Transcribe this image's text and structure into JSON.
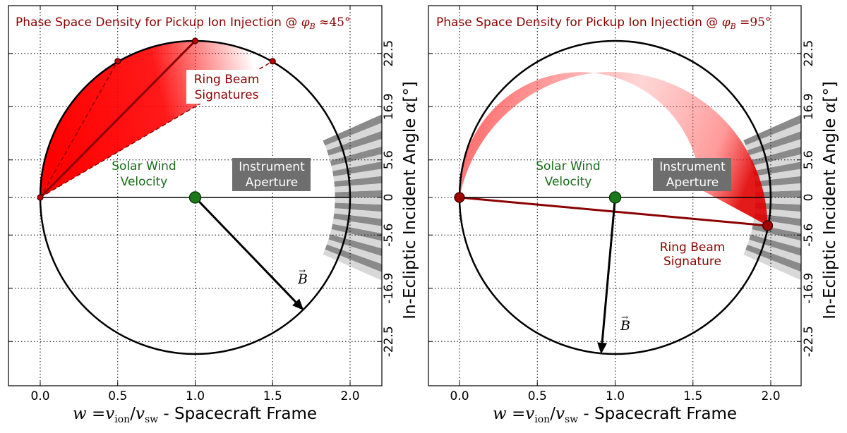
{
  "chart_data": [
    {
      "type": "scatter",
      "title": "Phase Space Density for Pickup Ion Injection @ φB ≈45°",
      "title_text": "Phase Space Density for Pickup Ion Injection @ ",
      "title_math": "φB ≈45°",
      "xlabel": "w = v_ion / v_sw - Spacecraft Frame",
      "xlabel_math": "w =v",
      "xlabel_sub1": "ion",
      "xlabel_mid": "/v",
      "xlabel_sub2": "sw",
      "xlabel_text": " - Spacecraft Frame",
      "ylabel_right": "In-Ecliptic Incident Angle α[°]",
      "xlim": [
        -0.2,
        2.2
      ],
      "ylim": [
        -1.15,
        1.15
      ],
      "xticks": [
        "0.0",
        "0.5",
        "1.0",
        "1.5",
        "2.0"
      ],
      "xtick_values": [
        0.0,
        0.5,
        1.0,
        1.5,
        2.0
      ],
      "yticks_right": [
        "22.5",
        "16.9",
        "5.6",
        "0",
        "-5.6",
        "-16.9",
        "-22.5"
      ],
      "ytick_values": [
        0.92,
        0.58,
        0.24,
        0.0,
        -0.24,
        -0.58,
        -0.92
      ],
      "grid": true,
      "circle": {
        "center": [
          1.0,
          0.0
        ],
        "radius": 1.0
      },
      "solar_wind_point": {
        "x": 1.0,
        "y": 0.0,
        "color": "#1a7a1a"
      },
      "b_vector": {
        "from": [
          1.0,
          0.0
        ],
        "to": [
          1.7,
          -0.72
        ],
        "label": "B⃗"
      },
      "ring_beam_points": [
        {
          "x": 0.0,
          "y": 0.0
        },
        {
          "x": 0.5,
          "y": 0.87
        },
        {
          "x": 1.0,
          "y": 1.0
        },
        {
          "x": 1.5,
          "y": 0.87
        }
      ],
      "annotations": {
        "ring_beam": "Ring Beam\nSignatures",
        "solar_wind": "Solar Wind\nVelocity",
        "aperture": "Instrument\nAperture"
      },
      "colors": {
        "ring": "#e00000",
        "dark_red": "#8b0000",
        "green": "#1a7a1a",
        "aperture_light": "#d8d8d8",
        "aperture_dark": "#8a8a8a",
        "label_bg": "#6e6e6e"
      }
    },
    {
      "type": "scatter",
      "title": "Phase Space Density for Pickup Ion Injection @ φB =95°",
      "title_text": "Phase Space Density for Pickup Ion Injection @ ",
      "title_math": "φB =95°",
      "xlabel": "w = v_ion / v_sw - Spacecraft Frame",
      "xlabel_math": "w =v",
      "xlabel_sub1": "ion",
      "xlabel_mid": "/v",
      "xlabel_sub2": "sw",
      "xlabel_text": " - Spacecraft Frame",
      "ylabel_right": "In-Ecliptic Incident Angle α[°]",
      "xlim": [
        -0.2,
        2.2
      ],
      "ylim": [
        -1.15,
        1.15
      ],
      "xticks": [
        "0.0",
        "0.5",
        "1.0",
        "1.5",
        "2.0"
      ],
      "xtick_values": [
        0.0,
        0.5,
        1.0,
        1.5,
        2.0
      ],
      "yticks_right": [
        "22.5",
        "16.9",
        "5.6",
        "0",
        "-5.6",
        "-16.9",
        "-22.5"
      ],
      "ytick_values": [
        0.92,
        0.58,
        0.24,
        0.0,
        -0.24,
        -0.58,
        -0.92
      ],
      "grid": true,
      "circle": {
        "center": [
          1.0,
          0.0
        ],
        "radius": 1.0
      },
      "solar_wind_point": {
        "x": 1.0,
        "y": 0.0,
        "color": "#1a7a1a"
      },
      "b_vector": {
        "from": [
          1.0,
          0.0
        ],
        "to": [
          0.91,
          -1.0
        ],
        "label": "B⃗"
      },
      "ring_beam_points": [
        {
          "x": 0.0,
          "y": 0.0
        },
        {
          "x": 1.98,
          "y": -0.18
        }
      ],
      "annotations": {
        "ring_beam": "Ring Beam\nSignature",
        "solar_wind": "Solar Wind\nVelocity",
        "aperture": "Instrument\nAperture"
      },
      "colors": {
        "ring": "#e00000",
        "dark_red": "#8b0000",
        "green": "#1a7a1a",
        "aperture_light": "#d8d8d8",
        "aperture_dark": "#8a8a8a",
        "label_bg": "#6e6e6e"
      }
    }
  ]
}
